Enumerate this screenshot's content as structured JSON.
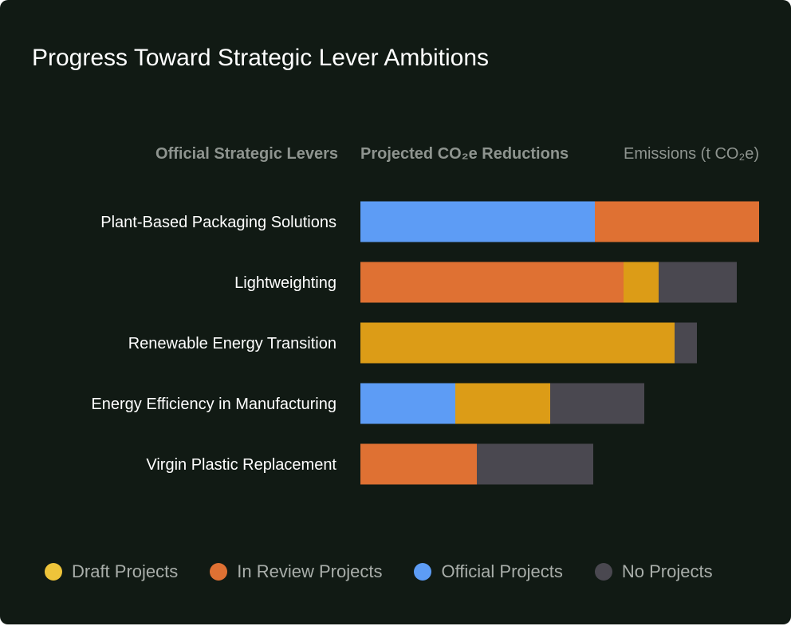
{
  "title": "Progress Toward Strategic Lever Ambitions",
  "columns": {
    "levers": "Official Strategic Levers",
    "reductions": "Projected CO₂e Reductions",
    "emissions": "Emissions (t CO₂e)"
  },
  "colors": {
    "draft": "#dc9c17",
    "in_review": "#df7133",
    "official": "#5d9cf5",
    "no_projects": "#4a4850",
    "legend_draft": "#eec43a"
  },
  "legend": [
    {
      "key": "draft",
      "label": "Draft Projects"
    },
    {
      "key": "in_review",
      "label": "In Review Projects"
    },
    {
      "key": "official",
      "label": "Official Projects"
    },
    {
      "key": "no_projects",
      "label": "No Projects"
    }
  ],
  "chart_data": {
    "type": "bar",
    "orientation": "horizontal",
    "stacked": true,
    "categories": [
      "Plant-Based Packaging Solutions",
      "Lightweighting",
      "Renewable Energy Transition",
      "Energy Efficiency in Manufacturing",
      "Virgin Plastic Replacement"
    ],
    "series": [
      {
        "name": "Official Projects",
        "key": "official",
        "values": [
          29.4,
          0,
          0,
          11.9,
          0
        ]
      },
      {
        "name": "In Review Projects",
        "key": "in_review",
        "values": [
          20.6,
          33,
          0,
          0,
          14.6
        ]
      },
      {
        "name": "Draft Projects",
        "key": "draft",
        "values": [
          0,
          4.4,
          39.4,
          11.9,
          0
        ]
      },
      {
        "name": "No Projects",
        "key": "no_projects",
        "values": [
          0,
          9.8,
          2.8,
          11.8,
          14.6
        ]
      }
    ],
    "xlim": [
      0,
      50
    ],
    "grid": false,
    "legend_position": "bottom"
  }
}
